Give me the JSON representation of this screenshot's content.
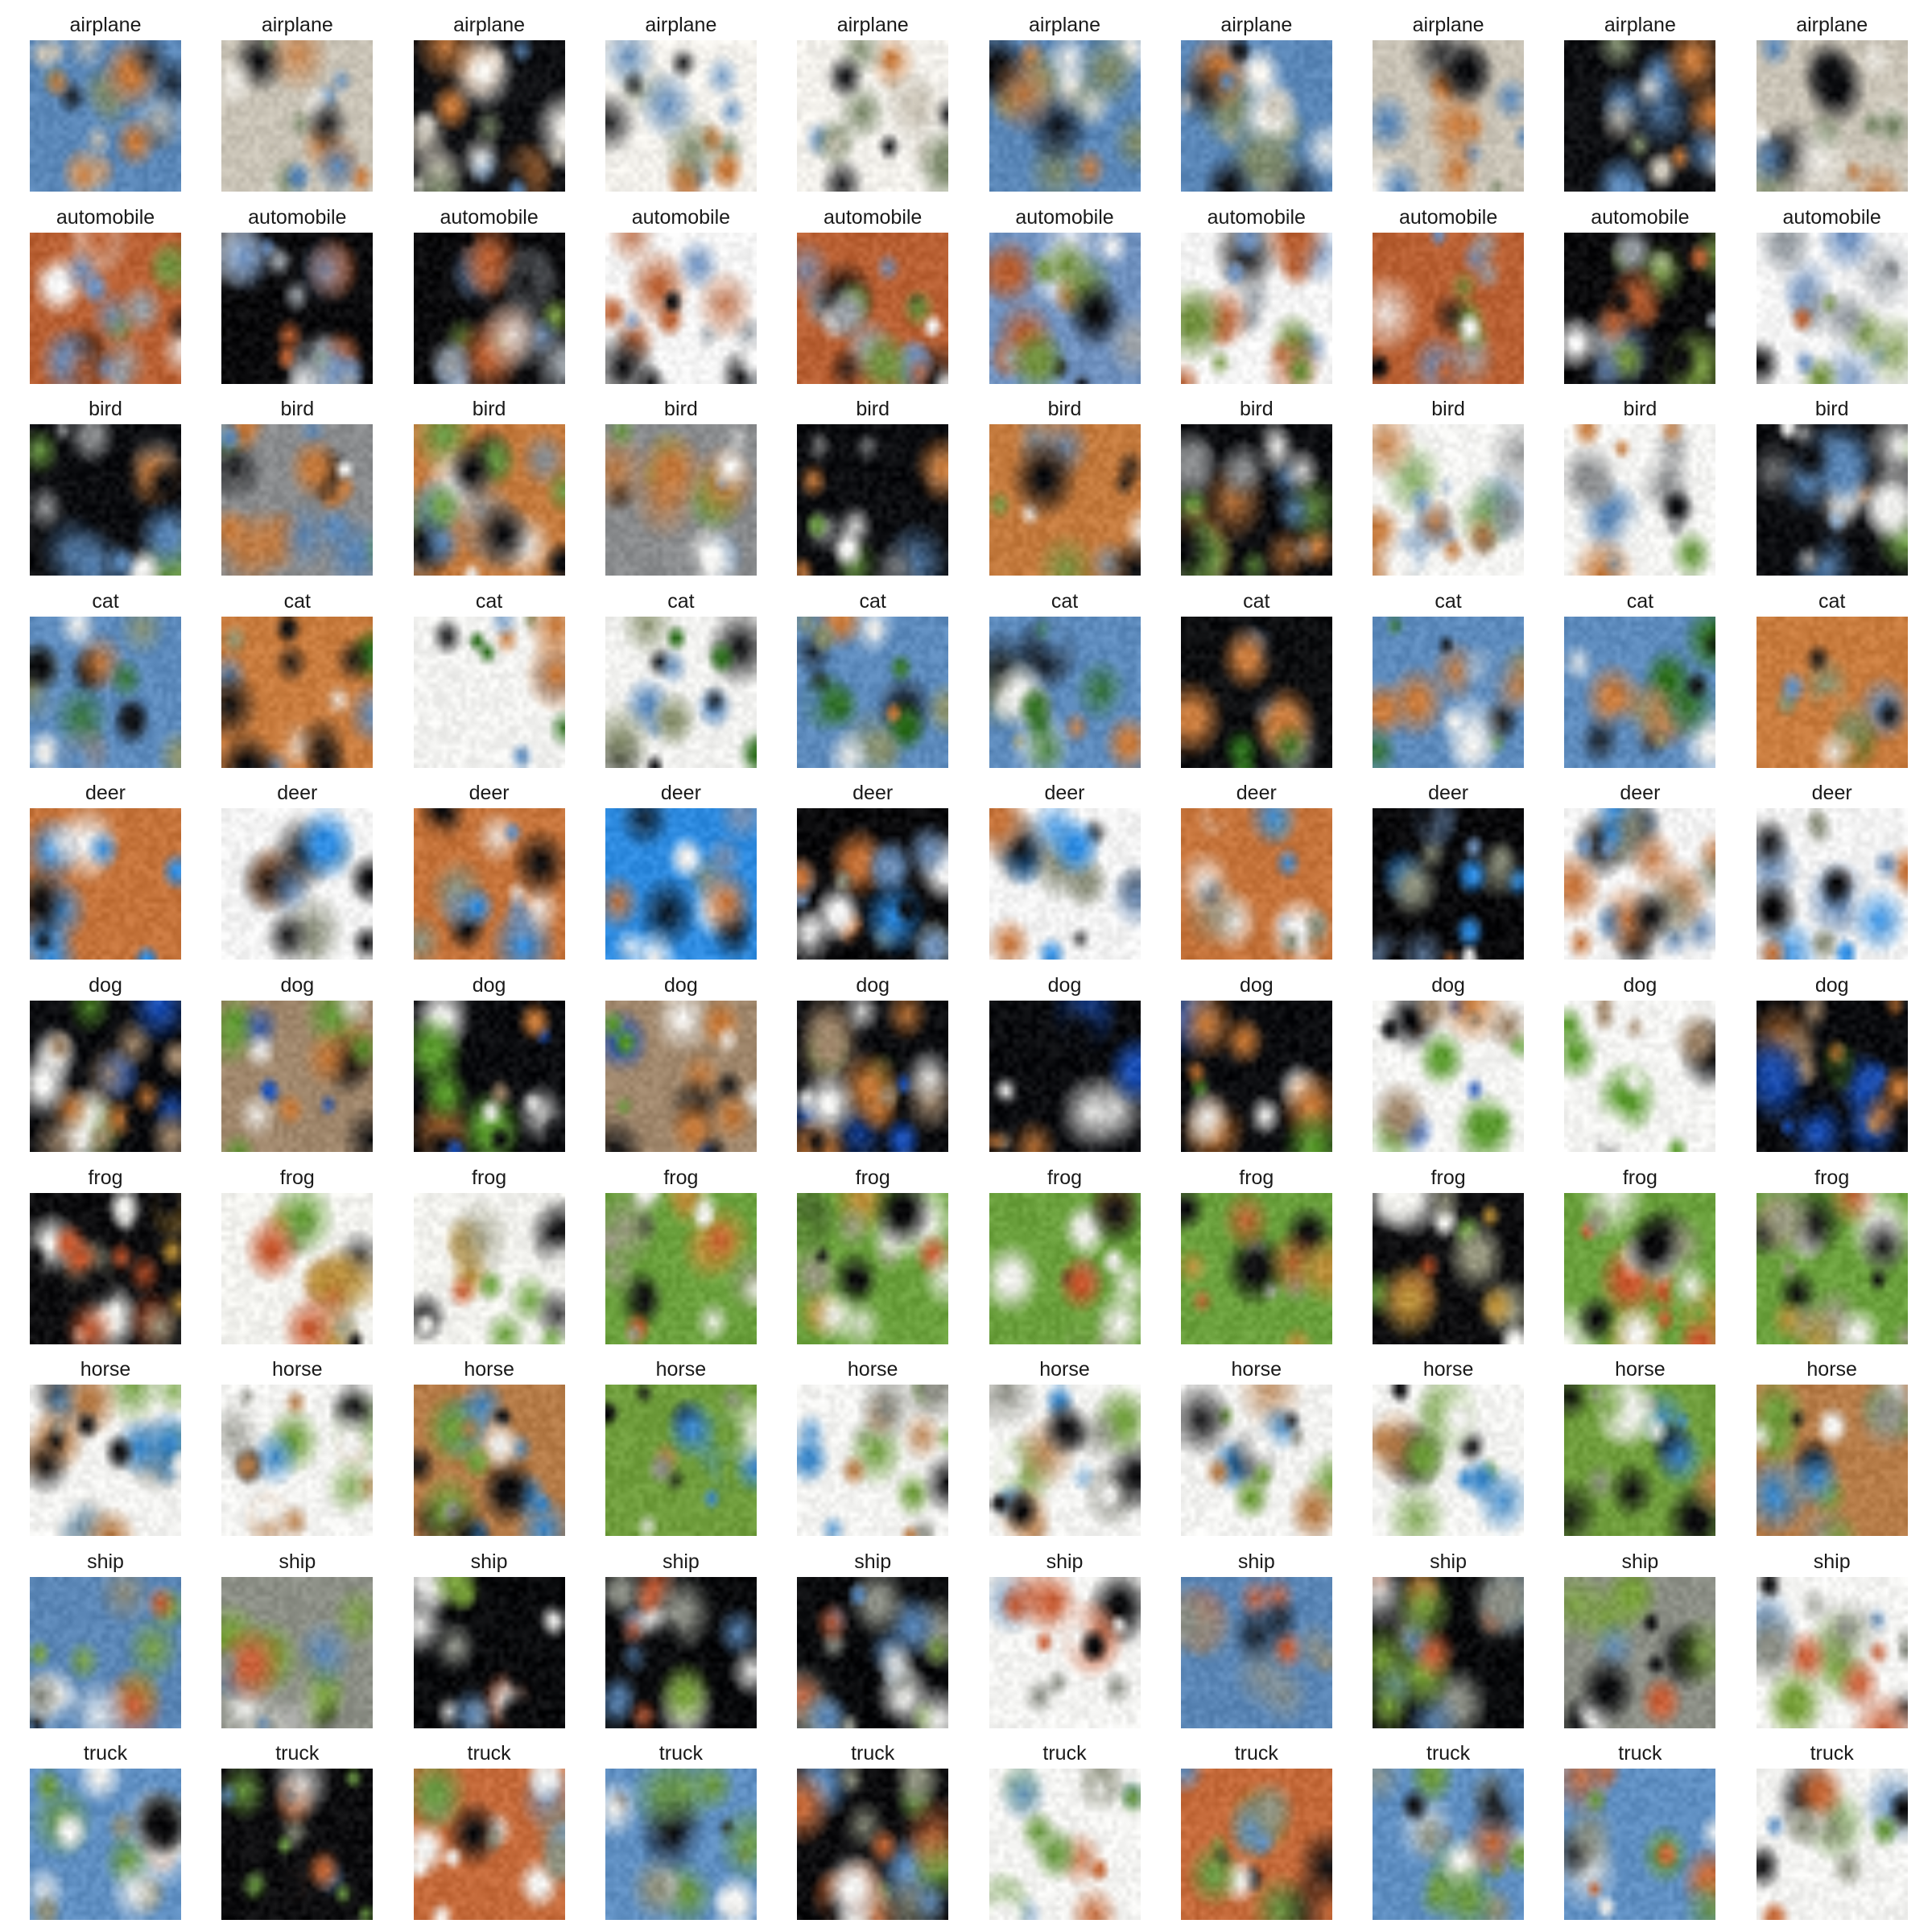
{
  "figure": {
    "rows": [
      {
        "label": "airplane",
        "palette": [
          "#5a87b8",
          "#c9c3b6",
          "#f3f1ec",
          "#0e0f12",
          "#7d8a6c",
          "#c77a3c"
        ]
      },
      {
        "label": "automobile",
        "palette": [
          "#6f91bf",
          "#f5f5f5",
          "#0b0b0d",
          "#b96033",
          "#72913f",
          "#9aa0a6"
        ]
      },
      {
        "label": "bird",
        "palette": [
          "#0c0d10",
          "#f4f4f2",
          "#8a8c8e",
          "#c47a3d",
          "#5a86b6",
          "#6c9a45"
        ]
      },
      {
        "label": "cat",
        "palette": [
          "#f2f2f0",
          "#0d0e10",
          "#5d8bbd",
          "#c97c3e",
          "#8a9270",
          "#2d6e1d"
        ]
      },
      {
        "label": "deer",
        "palette": [
          "#2e8be0",
          "#f3f3f3",
          "#0a0a0c",
          "#c5733a",
          "#8b8f7c",
          "#6f8fb7"
        ]
      },
      {
        "label": "dog",
        "palette": [
          "#0b0c0f",
          "#f4f4f2",
          "#a0876c",
          "#c47838",
          "#5a9a2e",
          "#1b4fb4"
        ]
      },
      {
        "label": "frog",
        "palette": [
          "#6ba13d",
          "#0d0d0f",
          "#f2f2ee",
          "#c8582e",
          "#9a9a82",
          "#b98f3a"
        ]
      },
      {
        "label": "horse",
        "palette": [
          "#0c0c0e",
          "#f3f3f1",
          "#6f9d3c",
          "#b67c48",
          "#8e8f86",
          "#3d88c9"
        ]
      },
      {
        "label": "ship",
        "palette": [
          "#0a0b0d",
          "#f4f4f2",
          "#5a86b6",
          "#8c8f86",
          "#c9613a",
          "#79a13c"
        ]
      },
      {
        "label": "truck",
        "palette": [
          "#f3f3f1",
          "#0d0d0f",
          "#5f8fc2",
          "#c56a3a",
          "#8e917f",
          "#6c9a44"
        ]
      }
    ],
    "columns": 10
  }
}
